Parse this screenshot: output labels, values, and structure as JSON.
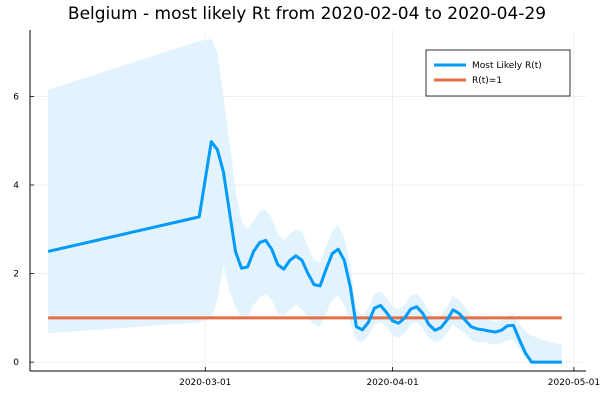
{
  "chart_data": {
    "type": "line",
    "title": "Belgium - most likely Rt from 2020-02-04 to 2020-04-29",
    "xlabel": "",
    "ylabel": "",
    "x_ticks": [
      "2020-03-01",
      "2020-04-01",
      "2020-05-01"
    ],
    "y_ticks": [
      0,
      2,
      4,
      6
    ],
    "xlim": [
      "2020-02-04",
      "2020-05-01"
    ],
    "ylim": [
      -0.2,
      7.5
    ],
    "grid": true,
    "legend_position": "top-right",
    "colors": {
      "mostlikely": "#009af9",
      "band": "#e3f3fe",
      "threshold": "#e26f46"
    },
    "series": [
      {
        "name": "Most Likely R(t)",
        "x": [
          "2020-02-04",
          "2020-02-29",
          "2020-03-02",
          "2020-03-03",
          "2020-03-04",
          "2020-03-05",
          "2020-03-06",
          "2020-03-07",
          "2020-03-08",
          "2020-03-09",
          "2020-03-10",
          "2020-03-11",
          "2020-03-12",
          "2020-03-13",
          "2020-03-14",
          "2020-03-15",
          "2020-03-16",
          "2020-03-17",
          "2020-03-18",
          "2020-03-19",
          "2020-03-20",
          "2020-03-21",
          "2020-03-22",
          "2020-03-23",
          "2020-03-24",
          "2020-03-25",
          "2020-03-26",
          "2020-03-27",
          "2020-03-28",
          "2020-03-29",
          "2020-03-30",
          "2020-03-31",
          "2020-04-01",
          "2020-04-02",
          "2020-04-03",
          "2020-04-04",
          "2020-04-05",
          "2020-04-06",
          "2020-04-07",
          "2020-04-08",
          "2020-04-09",
          "2020-04-10",
          "2020-04-11",
          "2020-04-12",
          "2020-04-13",
          "2020-04-14",
          "2020-04-15",
          "2020-04-16",
          "2020-04-17",
          "2020-04-18",
          "2020-04-19",
          "2020-04-20",
          "2020-04-21",
          "2020-04-22",
          "2020-04-23",
          "2020-04-24",
          "2020-04-25",
          "2020-04-26",
          "2020-04-27",
          "2020-04-28",
          "2020-04-29"
        ],
        "y": [
          2.5,
          3.28,
          4.98,
          4.8,
          4.3,
          3.4,
          2.5,
          2.12,
          2.15,
          2.5,
          2.7,
          2.75,
          2.55,
          2.2,
          2.1,
          2.3,
          2.4,
          2.3,
          2.0,
          1.75,
          1.72,
          2.1,
          2.45,
          2.55,
          2.3,
          1.7,
          0.8,
          0.73,
          0.9,
          1.22,
          1.28,
          1.12,
          0.93,
          0.88,
          1.0,
          1.2,
          1.25,
          1.1,
          0.85,
          0.72,
          0.78,
          0.95,
          1.18,
          1.1,
          0.95,
          0.8,
          0.75,
          0.73,
          0.7,
          0.68,
          0.72,
          0.82,
          0.83,
          0.5,
          0.2,
          0.0,
          0.0,
          0.0,
          0.0,
          0.0,
          0.0
        ]
      },
      {
        "name": "R(t)=1",
        "x": [
          "2020-02-04",
          "2020-04-29"
        ],
        "y": [
          1.0,
          1.0
        ]
      }
    ],
    "band": {
      "x": [
        "2020-02-04",
        "2020-02-29",
        "2020-03-02",
        "2020-03-03",
        "2020-03-04",
        "2020-03-05",
        "2020-03-06",
        "2020-03-07",
        "2020-03-08",
        "2020-03-09",
        "2020-03-10",
        "2020-03-11",
        "2020-03-12",
        "2020-03-13",
        "2020-03-14",
        "2020-03-15",
        "2020-03-16",
        "2020-03-17",
        "2020-03-18",
        "2020-03-19",
        "2020-03-20",
        "2020-03-21",
        "2020-03-22",
        "2020-03-23",
        "2020-03-24",
        "2020-03-25",
        "2020-03-26",
        "2020-03-27",
        "2020-03-28",
        "2020-03-29",
        "2020-03-30",
        "2020-03-31",
        "2020-04-01",
        "2020-04-02",
        "2020-04-03",
        "2020-04-04",
        "2020-04-05",
        "2020-04-06",
        "2020-04-07",
        "2020-04-08",
        "2020-04-09",
        "2020-04-10",
        "2020-04-11",
        "2020-04-12",
        "2020-04-13",
        "2020-04-14",
        "2020-04-15",
        "2020-04-16",
        "2020-04-17",
        "2020-04-18",
        "2020-04-19",
        "2020-04-20",
        "2020-04-21",
        "2020-04-22",
        "2020-04-23",
        "2020-04-24",
        "2020-04-25",
        "2020-04-26",
        "2020-04-27",
        "2020-04-28",
        "2020-04-29"
      ],
      "upper": [
        6.15,
        7.25,
        7.3,
        7.0,
        6.0,
        5.0,
        3.9,
        3.2,
        3.0,
        3.2,
        3.4,
        3.45,
        3.25,
        2.9,
        2.75,
        2.9,
        3.0,
        2.95,
        2.6,
        2.3,
        2.25,
        2.6,
        2.95,
        3.1,
        2.8,
        2.2,
        1.2,
        1.05,
        1.2,
        1.55,
        1.6,
        1.45,
        1.25,
        1.2,
        1.3,
        1.5,
        1.55,
        1.4,
        1.15,
        1.0,
        1.05,
        1.25,
        1.5,
        1.4,
        1.25,
        1.05,
        1.0,
        0.98,
        0.95,
        0.92,
        0.95,
        1.05,
        1.08,
        0.85,
        0.7,
        0.6,
        0.55,
        0.5,
        0.45,
        0.42,
        0.4
      ],
      "lower": [
        0.65,
        0.9,
        1.0,
        1.4,
        2.2,
        1.6,
        1.25,
        1.0,
        1.0,
        1.3,
        1.45,
        1.55,
        1.4,
        1.1,
        1.05,
        1.2,
        1.3,
        1.2,
        1.0,
        0.85,
        0.8,
        1.1,
        1.4,
        1.5,
        1.3,
        0.9,
        0.5,
        0.45,
        0.6,
        0.85,
        0.9,
        0.8,
        0.6,
        0.55,
        0.65,
        0.85,
        0.9,
        0.75,
        0.55,
        0.45,
        0.5,
        0.65,
        0.85,
        0.75,
        0.65,
        0.5,
        0.45,
        0.45,
        0.42,
        0.4,
        0.42,
        0.5,
        0.5,
        0.3,
        0.1,
        0.0,
        0.0,
        0.0,
        0.0,
        0.0,
        0.0
      ]
    }
  }
}
